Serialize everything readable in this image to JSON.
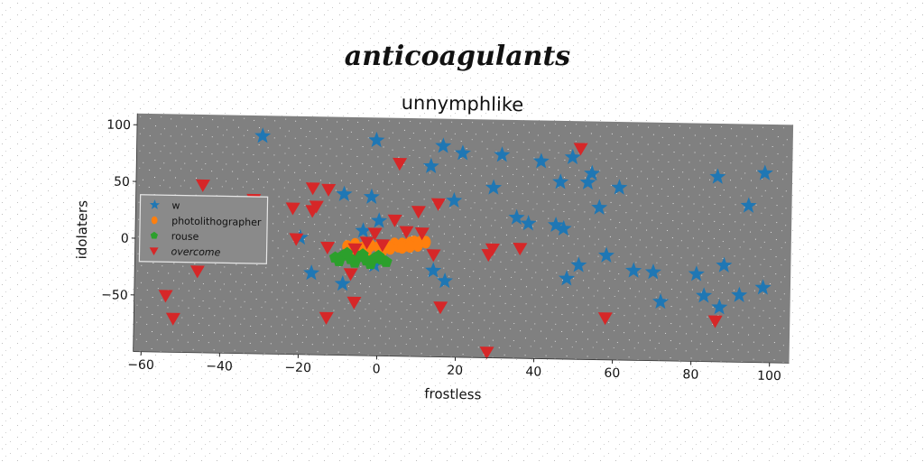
{
  "chart_data": {
    "type": "scatter",
    "title": "anticoagulants",
    "subtitle": "unnymphlike",
    "xlabel": "frostless",
    "ylabel": "idolaters",
    "xlim": [
      -62,
      105
    ],
    "ylim": [
      -100,
      110
    ],
    "xticks": [
      -60,
      -40,
      -20,
      0,
      20,
      40,
      60,
      80,
      100
    ],
    "yticks": [
      -50,
      0,
      50,
      100
    ],
    "grid": false,
    "legend_position": "center-left",
    "plot_background": "#808080",
    "series": [
      {
        "name": "w",
        "marker": "star",
        "color": "#1f77b4",
        "points": [
          [
            -30,
            92
          ],
          [
            -1,
            90
          ],
          [
            16,
            86
          ],
          [
            21,
            80
          ],
          [
            31,
            79
          ],
          [
            41,
            74
          ],
          [
            49,
            78
          ],
          [
            54,
            64
          ],
          [
            46,
            56
          ],
          [
            53,
            56
          ],
          [
            61,
            52
          ],
          [
            86,
            63
          ],
          [
            98,
            67
          ],
          [
            94,
            38
          ],
          [
            29,
            50
          ],
          [
            13,
            68
          ],
          [
            -9,
            42
          ],
          [
            -2,
            40
          ],
          [
            19,
            38
          ],
          [
            56,
            34
          ],
          [
            35,
            24
          ],
          [
            38,
            19
          ],
          [
            45,
            18
          ],
          [
            47,
            15
          ],
          [
            0,
            19
          ],
          [
            -4,
            10
          ],
          [
            -20,
            3
          ],
          [
            58,
            -8
          ],
          [
            51,
            -17
          ],
          [
            65,
            -21
          ],
          [
            70,
            -22
          ],
          [
            81,
            -23
          ],
          [
            88,
            -15
          ],
          [
            48,
            -29
          ],
          [
            14,
            -24
          ],
          [
            17,
            -33
          ],
          [
            -17,
            -28
          ],
          [
            -9,
            -37
          ],
          [
            -1,
            -20
          ],
          [
            72,
            -48
          ],
          [
            83,
            -42
          ],
          [
            87,
            -52
          ],
          [
            92,
            -41
          ],
          [
            98,
            -34
          ]
        ]
      },
      {
        "name": "photolithographer",
        "marker": "circle",
        "color": "#ff7f0e",
        "points": [
          [
            -8,
            -4
          ],
          [
            -6,
            -2
          ],
          [
            -4,
            -5
          ],
          [
            -2,
            -3
          ],
          [
            0,
            -4
          ],
          [
            2,
            -3
          ],
          [
            4,
            -1
          ],
          [
            5,
            -3
          ],
          [
            6,
            -1
          ],
          [
            7,
            -2
          ],
          [
            8,
            0
          ],
          [
            9,
            1
          ],
          [
            10,
            0
          ],
          [
            11,
            2
          ],
          [
            12,
            1
          ],
          [
            -7,
            -7
          ],
          [
            -3,
            -8
          ],
          [
            1,
            -7
          ],
          [
            3,
            -5
          ],
          [
            6,
            -4
          ],
          [
            8,
            -3
          ],
          [
            10,
            -2
          ]
        ]
      },
      {
        "name": "rouse",
        "marker": "pentagon",
        "color": "#2ca02c",
        "points": [
          [
            -11,
            -14
          ],
          [
            -9,
            -12
          ],
          [
            -7,
            -15
          ],
          [
            -5,
            -13
          ],
          [
            -3,
            -16
          ],
          [
            -1,
            -14
          ],
          [
            1,
            -15
          ],
          [
            -10,
            -17
          ],
          [
            -6,
            -18
          ],
          [
            -2,
            -19
          ],
          [
            2,
            -17
          ],
          [
            -8,
            -10
          ],
          [
            -4,
            -11
          ],
          [
            0,
            -12
          ]
        ]
      },
      {
        "name": "overcome",
        "marker": "triangle-down",
        "color": "#d62728",
        "points": [
          [
            -45,
            48
          ],
          [
            -32,
            36
          ],
          [
            -17,
            47
          ],
          [
            -13,
            46
          ],
          [
            -22,
            29
          ],
          [
            -17,
            27
          ],
          [
            -16,
            31
          ],
          [
            -21,
            2
          ],
          [
            -13,
            -5
          ],
          [
            -6,
            -6
          ],
          [
            -3,
            0
          ],
          [
            -1,
            8
          ],
          [
            1,
            -2
          ],
          [
            4,
            20
          ],
          [
            5,
            70
          ],
          [
            7,
            10
          ],
          [
            10,
            28
          ],
          [
            11,
            9
          ],
          [
            15,
            35
          ],
          [
            14,
            -10
          ],
          [
            28,
            -9
          ],
          [
            29,
            -4
          ],
          [
            36,
            -3
          ],
          [
            51,
            86
          ],
          [
            -7,
            -28
          ],
          [
            -6,
            -53
          ],
          [
            -13,
            -67
          ],
          [
            -54,
            -50
          ],
          [
            -52,
            -70
          ],
          [
            -46,
            -28
          ],
          [
            -46,
            9
          ],
          [
            16,
            -56
          ],
          [
            28,
            -95
          ],
          [
            58,
            -63
          ],
          [
            86,
            -64
          ]
        ]
      }
    ]
  }
}
